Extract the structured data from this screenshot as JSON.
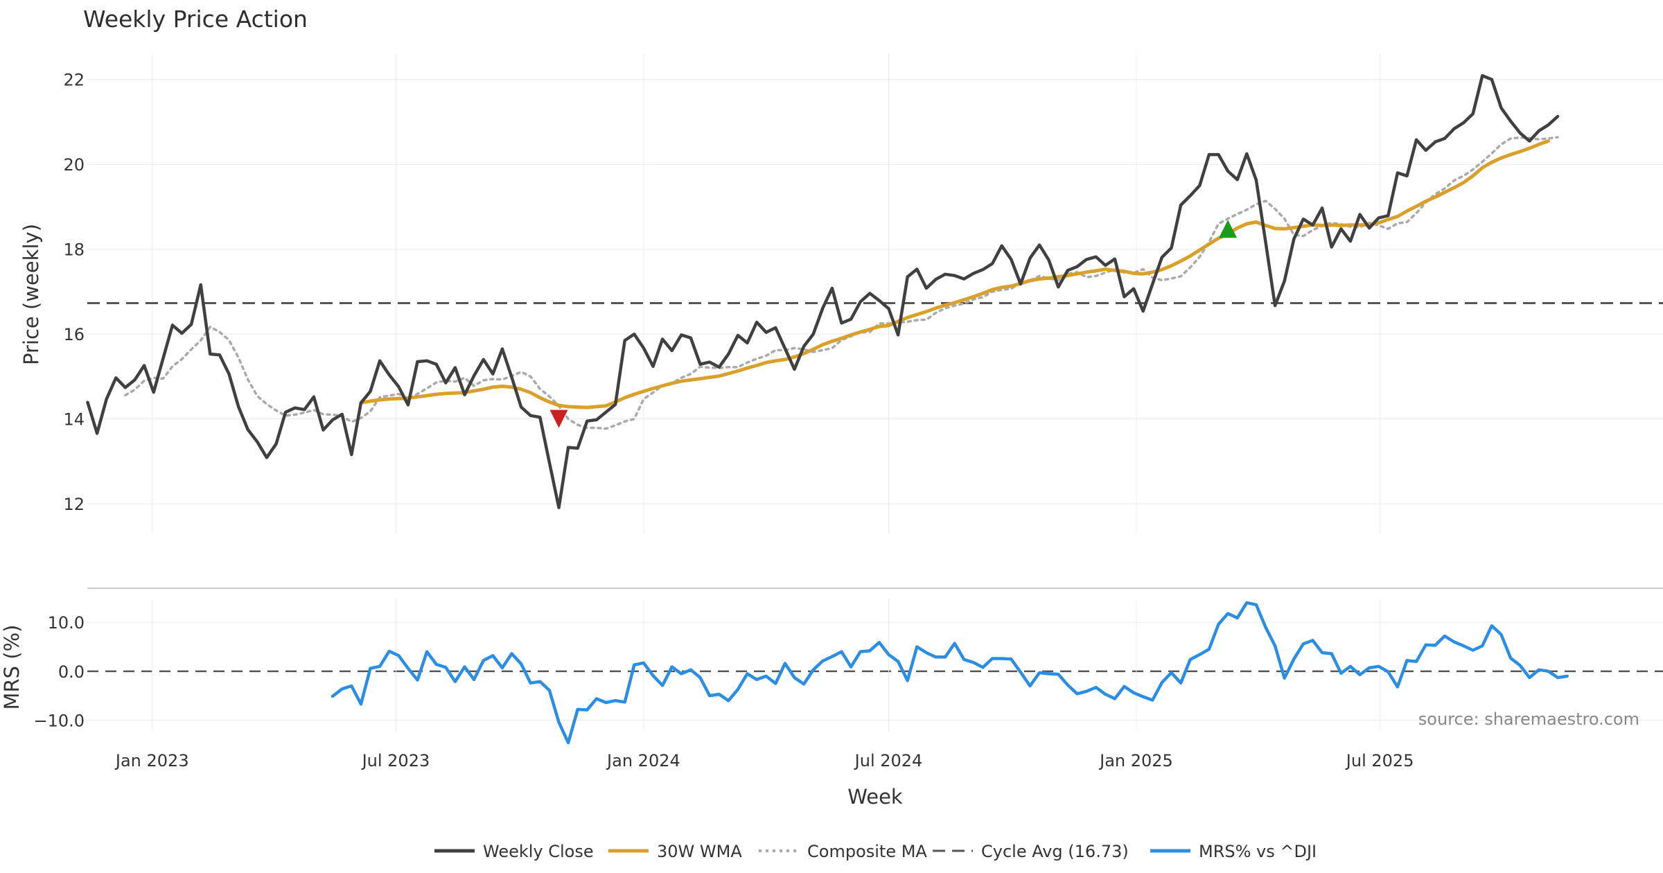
{
  "title": "Weekly Price Action",
  "source_text": "source: sharemaestro.com",
  "colors": {
    "close": "#404040",
    "wma": "#d9a12b",
    "composite": "#aaaaaa",
    "cycle": "#555555",
    "mrs": "#2b8ee3",
    "buy_marker": "#1a9e1a",
    "sell_marker": "#cc1f1f",
    "grid": "#e8ecef"
  },
  "chart_data": [
    {
      "type": "line",
      "panel": "price",
      "ylabel": "Price (weekly)",
      "xlabel": "Week",
      "ylim": [
        11.3,
        22.6
      ],
      "yticks": [
        12,
        14,
        16,
        18,
        20,
        22
      ],
      "xticks": [
        {
          "date": "2023-01-01",
          "label": "Jan 2023"
        },
        {
          "date": "2023-07-01",
          "label": "Jul 2023"
        },
        {
          "date": "2024-01-01",
          "label": "Jan 2024"
        },
        {
          "date": "2024-07-01",
          "label": "Jul 2024"
        },
        {
          "date": "2025-01-01",
          "label": "Jan 2025"
        },
        {
          "date": "2025-07-01",
          "label": "Jul 2025"
        }
      ],
      "x_start": "2022-11-14",
      "x_step_days": 7,
      "cycle_avg": 16.73,
      "series": [
        {
          "name": "Weekly Close",
          "start_week": 0,
          "values": [
            14.39,
            13.66,
            14.47,
            14.97,
            14.74,
            14.92,
            15.26,
            14.63,
            15.42,
            16.21,
            16.02,
            16.23,
            17.16,
            15.53,
            15.51,
            15.06,
            14.29,
            13.75,
            13.46,
            13.09,
            13.41,
            14.16,
            14.26,
            14.22,
            14.52,
            13.74,
            13.98,
            14.11,
            13.16,
            14.38,
            14.65,
            15.37,
            15.04,
            14.76,
            14.33,
            15.35,
            15.37,
            15.29,
            14.85,
            15.21,
            14.57,
            15.02,
            15.4,
            15.06,
            15.65,
            14.98,
            14.28,
            14.08,
            14.04,
            12.97,
            11.91,
            13.33,
            13.31,
            13.95,
            13.98,
            14.16,
            14.34,
            15.85,
            16.0,
            15.67,
            15.24,
            15.88,
            15.61,
            15.98,
            15.91,
            15.29,
            15.34,
            15.22,
            15.53,
            15.97,
            15.79,
            16.28,
            16.04,
            16.15,
            15.66,
            15.17,
            15.71,
            16.0,
            16.61,
            17.08,
            16.26,
            16.35,
            16.76,
            16.96,
            16.79,
            16.6,
            15.98,
            17.35,
            17.53,
            17.08,
            17.29,
            17.41,
            17.38,
            17.3,
            17.43,
            17.52,
            17.66,
            18.08,
            17.76,
            17.18,
            17.79,
            18.1,
            17.74,
            17.11,
            17.5,
            17.59,
            17.76,
            17.82,
            17.62,
            17.77,
            16.88,
            17.07,
            16.54,
            17.18,
            17.81,
            18.03,
            19.04,
            19.26,
            19.5,
            20.23,
            20.23,
            19.84,
            19.64,
            20.25,
            19.63,
            18.17,
            16.67,
            17.25,
            18.24,
            18.71,
            18.57,
            18.97,
            18.05,
            18.48,
            18.19,
            18.82,
            18.5,
            18.74,
            18.79,
            19.8,
            19.73,
            20.58,
            20.33,
            20.53,
            20.61,
            20.84,
            20.98,
            21.19,
            22.09,
            22.0,
            21.33,
            21.02,
            20.74,
            20.55,
            20.79,
            20.93,
            21.13
          ]
        },
        {
          "name": "30W WMA",
          "start_week": 29,
          "values": [
            14.38,
            14.42,
            14.45,
            14.47,
            14.48,
            14.49,
            14.52,
            14.55,
            14.58,
            14.6,
            14.61,
            14.62,
            14.66,
            14.7,
            14.75,
            14.77,
            14.75,
            14.7,
            14.62,
            14.5,
            14.4,
            14.32,
            14.29,
            14.28,
            14.27,
            14.29,
            14.31,
            14.4,
            14.5,
            14.58,
            14.65,
            14.72,
            14.78,
            14.84,
            14.89,
            14.92,
            14.95,
            14.98,
            15.01,
            15.07,
            15.13,
            15.2,
            15.26,
            15.33,
            15.37,
            15.4,
            15.46,
            15.54,
            15.64,
            15.75,
            15.83,
            15.9,
            15.98,
            16.05,
            16.11,
            16.18,
            16.2,
            16.3,
            16.39,
            16.46,
            16.53,
            16.61,
            16.68,
            16.74,
            16.81,
            16.88,
            16.96,
            17.05,
            17.1,
            17.13,
            17.19,
            17.26,
            17.3,
            17.32,
            17.35,
            17.38,
            17.42,
            17.46,
            17.49,
            17.53,
            17.5,
            17.48,
            17.43,
            17.42,
            17.46,
            17.52,
            17.61,
            17.72,
            17.84,
            17.98,
            18.12,
            18.26,
            18.36,
            18.5,
            18.6,
            18.64,
            18.56,
            18.49,
            18.48,
            18.51,
            18.54,
            18.57,
            18.56,
            18.57,
            18.56,
            18.57,
            18.57,
            18.58,
            18.62,
            18.7,
            18.77,
            18.9,
            19.01,
            19.13,
            19.23,
            19.34,
            19.45,
            19.57,
            19.73,
            19.92,
            20.05,
            20.15,
            20.23,
            20.3,
            20.38,
            20.47,
            20.55
          ]
        },
        {
          "name": "Composite MA",
          "start_week": 4,
          "values": [
            14.56,
            14.69,
            14.9,
            14.97,
            14.95,
            15.24,
            15.41,
            15.64,
            15.85,
            16.17,
            16.05,
            15.86,
            15.45,
            14.93,
            14.54,
            14.35,
            14.2,
            14.08,
            14.1,
            14.15,
            14.21,
            14.11,
            14.1,
            14.07,
            13.93,
            14.02,
            14.18,
            14.51,
            14.55,
            14.59,
            14.47,
            14.59,
            14.72,
            14.86,
            14.9,
            14.88,
            14.97,
            14.78,
            14.91,
            14.94,
            14.93,
            15.01,
            15.11,
            15.0,
            14.71,
            14.53,
            14.31,
            14.0,
            13.86,
            13.79,
            13.79,
            13.77,
            13.85,
            13.94,
            14.0,
            14.47,
            14.62,
            14.79,
            14.84,
            14.97,
            15.06,
            15.23,
            15.21,
            15.2,
            15.22,
            15.22,
            15.33,
            15.42,
            15.49,
            15.62,
            15.62,
            15.67,
            15.64,
            15.58,
            15.62,
            15.67,
            15.86,
            15.95,
            16.04,
            16.05,
            16.25,
            16.25,
            16.27,
            16.29,
            16.33,
            16.34,
            16.5,
            16.61,
            16.67,
            16.72,
            16.82,
            16.87,
            17.0,
            17.04,
            17.07,
            17.21,
            17.26,
            17.37,
            17.31,
            17.27,
            17.42,
            17.46,
            17.34,
            17.37,
            17.45,
            17.52,
            17.45,
            17.44,
            17.53,
            17.33,
            17.27,
            17.31,
            17.36,
            17.57,
            17.82,
            18.17,
            18.6,
            18.72,
            18.83,
            18.93,
            19.06,
            19.14,
            18.95,
            18.72,
            18.34,
            18.31,
            18.45,
            18.55,
            18.62,
            18.59,
            18.53,
            18.52,
            18.62,
            18.56,
            18.48,
            18.61,
            18.64,
            18.85,
            19.1,
            19.3,
            19.43,
            19.62,
            19.73,
            19.88,
            20.06,
            20.26,
            20.47,
            20.61,
            20.63,
            20.62,
            20.59,
            20.61,
            20.64
          ]
        }
      ],
      "markers": [
        {
          "type": "sell",
          "shape": "triangle-down",
          "week": 50,
          "y": 14.0
        },
        {
          "type": "buy",
          "shape": "triangle-up",
          "week": 121,
          "y": 18.48
        }
      ]
    },
    {
      "type": "line",
      "panel": "mrs",
      "ylabel": "MRS (%)",
      "ylim": [
        -12.2,
        14.7
      ],
      "yticks": [
        10.0,
        0.0,
        -10.0
      ],
      "ytick_labels": [
        "10.0",
        "0.0",
        "−10.0"
      ],
      "series": [
        {
          "name": "MRS% vs ^DJI",
          "start_week": 26,
          "values": [
            -5.1,
            -3.6,
            -3.0,
            -6.7,
            0.6,
            1.0,
            4.1,
            3.2,
            0.6,
            -1.8,
            4.0,
            1.4,
            0.8,
            -2.1,
            0.9,
            -1.7,
            2.2,
            3.2,
            0.7,
            3.6,
            1.5,
            -2.4,
            -2.1,
            -3.9,
            -10.4,
            -14.6,
            -7.8,
            -7.9,
            -5.6,
            -6.4,
            -6.0,
            -6.3,
            1.3,
            1.7,
            -0.9,
            -2.9,
            0.9,
            -0.5,
            0.3,
            -1.3,
            -5.0,
            -4.7,
            -6.0,
            -3.7,
            -0.5,
            -1.7,
            -1.0,
            -2.5,
            1.6,
            -1.3,
            -2.6,
            0.3,
            2.1,
            3.0,
            4.0,
            0.9,
            4.0,
            4.2,
            5.9,
            3.4,
            2.0,
            -1.9,
            5.0,
            3.8,
            2.9,
            2.9,
            5.7,
            2.4,
            1.8,
            0.8,
            2.6,
            2.6,
            2.5,
            -0.2,
            -3.0,
            -0.3,
            -0.5,
            -0.6,
            -2.8,
            -4.6,
            -4.1,
            -3.3,
            -4.7,
            -5.6,
            -3.1,
            -4.4,
            -5.2,
            -5.9,
            -2.3,
            -0.3,
            -2.4,
            2.4,
            3.4,
            4.5,
            9.6,
            11.8,
            10.9,
            14.0,
            13.6,
            9.0,
            5.2,
            -1.4,
            2.5,
            5.6,
            6.3,
            3.8,
            3.6,
            -0.4,
            1.0,
            -0.7,
            0.7,
            1.0,
            -0.1,
            -3.2,
            2.2,
            2.0,
            5.4,
            5.3,
            7.2,
            6.0,
            5.2,
            4.3,
            5.2,
            9.3,
            7.5,
            2.7,
            1.2,
            -1.3,
            0.3,
            0.0,
            -1.3,
            -1.0
          ]
        }
      ]
    }
  ],
  "legend": [
    {
      "label": "Weekly Close",
      "style": "solid",
      "color": "#404040"
    },
    {
      "label": "30W WMA",
      "style": "solid",
      "color": "#d9a12b"
    },
    {
      "label": "Composite MA",
      "style": "dotted",
      "color": "#aaaaaa"
    },
    {
      "label": "Cycle Avg (16.73)",
      "style": "dashed",
      "color": "#555555"
    },
    {
      "label": "MRS% vs ^DJI",
      "style": "solid",
      "color": "#2b8ee3"
    }
  ]
}
